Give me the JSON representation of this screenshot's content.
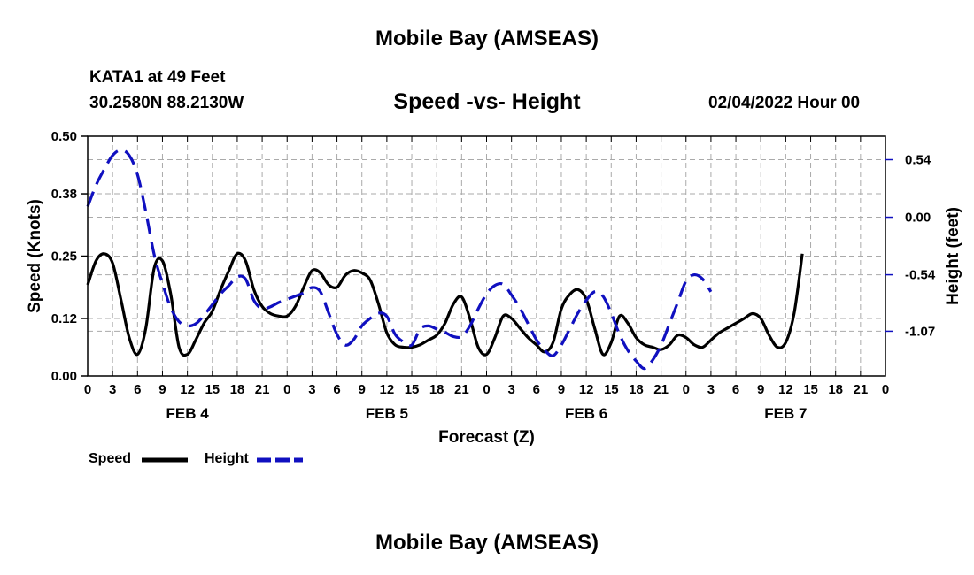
{
  "header": {
    "title": "Mobile Bay (AMSEAS)",
    "station": "KATA1 at 49 Feet",
    "coords": "30.2580N  88.2130W",
    "subtitle": "Speed -vs- Height",
    "datetime": "02/04/2022 Hour 00",
    "footer_title": "Mobile Bay (AMSEAS)"
  },
  "legend": {
    "speed_label": "Speed",
    "height_label": "Height"
  },
  "colors": {
    "speed": "#000000",
    "height": "#1010c0",
    "grid": "#aaaaaa"
  },
  "chart_data": {
    "type": "line",
    "title": "Speed -vs- Height",
    "xlabel": "Forecast (Z)",
    "ylabel": "Speed (Knots)",
    "y2label": "Height (feet)",
    "x_range_hours": [
      0,
      96
    ],
    "ylim": [
      0,
      0.5
    ],
    "y_ticks": [
      "0.00",
      "0.12",
      "0.25",
      "0.38",
      "0.50"
    ],
    "y2_ticks": [
      {
        "label": "0.54",
        "value": 0.54
      },
      {
        "label": "0.00",
        "value": 0.0
      },
      {
        "label": "-0.54",
        "value": -0.54
      },
      {
        "label": "-1.07",
        "value": -1.07
      }
    ],
    "y2lim": [
      -1.49,
      0.76
    ],
    "x_tick_labels": [
      "0",
      "3",
      "6",
      "9",
      "12",
      "15",
      "18",
      "21",
      "0",
      "3",
      "6",
      "9",
      "12",
      "15",
      "18",
      "21",
      "0",
      "3",
      "6",
      "9",
      "12",
      "15",
      "18",
      "21",
      "0",
      "3",
      "6",
      "9",
      "12",
      "15",
      "18",
      "21",
      "0"
    ],
    "day_labels": [
      {
        "label": "FEB 4",
        "hour": 12
      },
      {
        "label": "FEB 5",
        "hour": 36
      },
      {
        "label": "FEB 6",
        "hour": 60
      },
      {
        "label": "FEB 7",
        "hour": 84
      }
    ],
    "series": [
      {
        "name": "Speed",
        "style": "solid",
        "axis": "left",
        "points": [
          [
            0,
            0.19
          ],
          [
            1,
            0.24
          ],
          [
            2,
            0.255
          ],
          [
            3,
            0.235
          ],
          [
            4,
            0.16
          ],
          [
            5,
            0.08
          ],
          [
            6,
            0.045
          ],
          [
            7,
            0.1
          ],
          [
            8,
            0.225
          ],
          [
            9,
            0.24
          ],
          [
            10,
            0.17
          ],
          [
            11,
            0.06
          ],
          [
            12,
            0.045
          ],
          [
            13,
            0.075
          ],
          [
            14,
            0.11
          ],
          [
            15,
            0.135
          ],
          [
            16,
            0.18
          ],
          [
            17,
            0.22
          ],
          [
            18,
            0.255
          ],
          [
            19,
            0.24
          ],
          [
            20,
            0.18
          ],
          [
            21,
            0.145
          ],
          [
            22,
            0.13
          ],
          [
            23,
            0.125
          ],
          [
            24,
            0.125
          ],
          [
            25,
            0.145
          ],
          [
            26,
            0.185
          ],
          [
            27,
            0.22
          ],
          [
            28,
            0.215
          ],
          [
            29,
            0.19
          ],
          [
            30,
            0.185
          ],
          [
            31,
            0.21
          ],
          [
            32,
            0.22
          ],
          [
            33,
            0.215
          ],
          [
            34,
            0.2
          ],
          [
            35,
            0.15
          ],
          [
            36,
            0.09
          ],
          [
            37,
            0.065
          ],
          [
            38,
            0.06
          ],
          [
            39,
            0.06
          ],
          [
            40,
            0.065
          ],
          [
            41,
            0.075
          ],
          [
            42,
            0.085
          ],
          [
            43,
            0.11
          ],
          [
            44,
            0.15
          ],
          [
            45,
            0.165
          ],
          [
            46,
            0.12
          ],
          [
            47,
            0.06
          ],
          [
            48,
            0.045
          ],
          [
            49,
            0.08
          ],
          [
            50,
            0.125
          ],
          [
            51,
            0.12
          ],
          [
            52,
            0.1
          ],
          [
            53,
            0.08
          ],
          [
            54,
            0.065
          ],
          [
            55,
            0.05
          ],
          [
            56,
            0.07
          ],
          [
            57,
            0.14
          ],
          [
            58,
            0.17
          ],
          [
            59,
            0.18
          ],
          [
            60,
            0.16
          ],
          [
            61,
            0.1
          ],
          [
            62,
            0.045
          ],
          [
            63,
            0.07
          ],
          [
            64,
            0.125
          ],
          [
            65,
            0.11
          ],
          [
            66,
            0.08
          ],
          [
            67,
            0.065
          ],
          [
            68,
            0.06
          ],
          [
            69,
            0.055
          ],
          [
            70,
            0.065
          ],
          [
            71,
            0.085
          ],
          [
            72,
            0.08
          ],
          [
            73,
            0.065
          ],
          [
            74,
            0.06
          ],
          [
            75,
            0.075
          ],
          [
            76,
            0.09
          ],
          [
            77,
            0.1
          ],
          [
            78,
            0.11
          ],
          [
            79,
            0.12
          ],
          [
            80,
            0.13
          ],
          [
            81,
            0.12
          ],
          [
            82,
            0.085
          ],
          [
            83,
            0.06
          ],
          [
            84,
            0.07
          ],
          [
            85,
            0.13
          ],
          [
            86,
            0.255
          ]
        ]
      },
      {
        "name": "Height",
        "style": "dashed",
        "axis": "right",
        "points": [
          [
            0,
            0.1
          ],
          [
            1,
            0.3
          ],
          [
            2,
            0.45
          ],
          [
            3,
            0.58
          ],
          [
            4,
            0.63
          ],
          [
            5,
            0.58
          ],
          [
            6,
            0.4
          ],
          [
            7,
            0.05
          ],
          [
            8,
            -0.35
          ],
          [
            9,
            -0.62
          ],
          [
            10,
            -0.85
          ],
          [
            11,
            -0.98
          ],
          [
            12,
            -1.02
          ],
          [
            13,
            -1.0
          ],
          [
            14,
            -0.92
          ],
          [
            15,
            -0.82
          ],
          [
            16,
            -0.72
          ],
          [
            17,
            -0.64
          ],
          [
            18,
            -0.56
          ],
          [
            19,
            -0.58
          ],
          [
            20,
            -0.78
          ],
          [
            21,
            -0.86
          ],
          [
            22,
            -0.84
          ],
          [
            23,
            -0.8
          ],
          [
            24,
            -0.77
          ],
          [
            25,
            -0.74
          ],
          [
            26,
            -0.71
          ],
          [
            27,
            -0.66
          ],
          [
            28,
            -0.7
          ],
          [
            29,
            -0.9
          ],
          [
            30,
            -1.1
          ],
          [
            31,
            -1.2
          ],
          [
            32,
            -1.15
          ],
          [
            33,
            -1.02
          ],
          [
            34,
            -0.95
          ],
          [
            35,
            -0.9
          ],
          [
            36,
            -0.93
          ],
          [
            37,
            -1.1
          ],
          [
            38,
            -1.17
          ],
          [
            39,
            -1.2
          ],
          [
            40,
            -1.05
          ],
          [
            41,
            -1.02
          ],
          [
            42,
            -1.05
          ],
          [
            43,
            -1.08
          ],
          [
            44,
            -1.12
          ],
          [
            45,
            -1.12
          ],
          [
            46,
            -1.02
          ],
          [
            47,
            -0.86
          ],
          [
            48,
            -0.72
          ],
          [
            49,
            -0.64
          ],
          [
            50,
            -0.63
          ],
          [
            51,
            -0.73
          ],
          [
            52,
            -0.85
          ],
          [
            53,
            -1.0
          ],
          [
            54,
            -1.15
          ],
          [
            55,
            -1.25
          ],
          [
            56,
            -1.3
          ],
          [
            57,
            -1.2
          ],
          [
            58,
            -1.05
          ],
          [
            59,
            -0.9
          ],
          [
            60,
            -0.78
          ],
          [
            61,
            -0.7
          ],
          [
            62,
            -0.74
          ],
          [
            63,
            -0.9
          ],
          [
            64,
            -1.1
          ],
          [
            65,
            -1.25
          ],
          [
            66,
            -1.35
          ],
          [
            67,
            -1.42
          ],
          [
            68,
            -1.34
          ],
          [
            69,
            -1.2
          ],
          [
            70,
            -1.0
          ],
          [
            71,
            -0.8
          ],
          [
            72,
            -0.6
          ],
          [
            73,
            -0.54
          ],
          [
            74,
            -0.58
          ],
          [
            75,
            -0.7
          ]
        ]
      }
    ]
  }
}
